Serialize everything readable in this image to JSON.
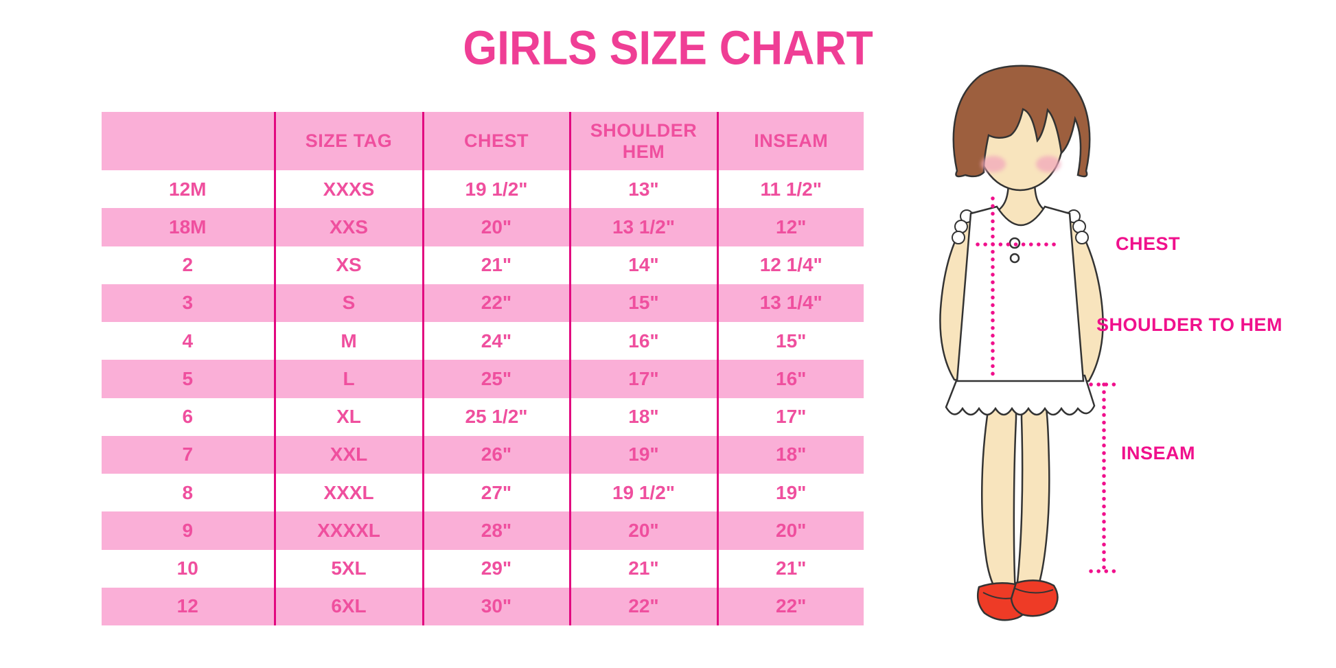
{
  "title": "GIRLS SIZE CHART",
  "chart_data": {
    "type": "table",
    "title": "GIRLS SIZE CHART",
    "columns": [
      "",
      "SIZE TAG",
      "CHEST",
      "SHOULDER HEM",
      "INSEAM"
    ],
    "rows": [
      [
        "12M",
        "XXXS",
        "19 1/2\"",
        "13\"",
        "11 1/2\""
      ],
      [
        "18M",
        "XXS",
        "20\"",
        "13 1/2\"",
        "12\""
      ],
      [
        "2",
        "XS",
        "21\"",
        "14\"",
        "12 1/4\""
      ],
      [
        "3",
        "S",
        "22\"",
        "15\"",
        "13 1/4\""
      ],
      [
        "4",
        "M",
        "24\"",
        "16\"",
        "15\""
      ],
      [
        "5",
        "L",
        "25\"",
        "17\"",
        "16\""
      ],
      [
        "6",
        "XL",
        "25 1/2\"",
        "18\"",
        "17\""
      ],
      [
        "7",
        "XXL",
        "26\"",
        "19\"",
        "18\""
      ],
      [
        "8",
        "XXXL",
        "27\"",
        "19 1/2\"",
        "19\""
      ],
      [
        "9",
        "XXXXL",
        "28\"",
        "20\"",
        "20\""
      ],
      [
        "10",
        "5XL",
        "29\"",
        "21\"",
        "21\""
      ],
      [
        "12",
        "6XL",
        "30\"",
        "22\"",
        "22\""
      ]
    ],
    "row_striping": "white/pink alternating, header pink",
    "grid": "vertical magenta column dividers only"
  },
  "figure": {
    "labels": {
      "chest": "CHEST",
      "shoulder_to_hem": "SHOULDER TO HEM",
      "inseam": "INSEAM"
    }
  },
  "colors": {
    "title_text": "#EF3E95",
    "table_text": "#EF4F9E",
    "row_pink": "#FAAFD7",
    "divider": "#E2077F",
    "label_magenta": "#F0108C",
    "dotted_line": "#F0108C",
    "hair_brown": "#9D5F3E",
    "skin": "#F8E4BD",
    "blush": "#F2A8BC",
    "dress_white": "#FFFFFF",
    "shoe_red": "#EE3B26",
    "outline": "#333333"
  }
}
